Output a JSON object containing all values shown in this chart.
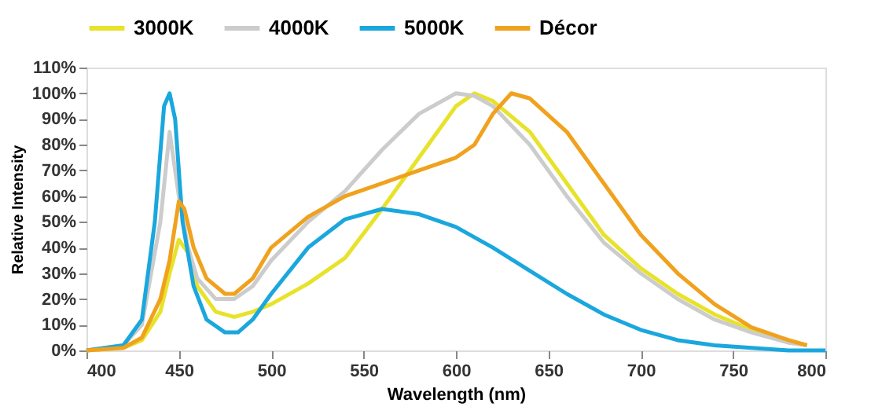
{
  "chart_data": {
    "type": "line",
    "xlabel": "Wavelength (nm)",
    "ylabel": "Relative Intensity",
    "xlim": [
      400,
      800
    ],
    "xticks": [
      400,
      450,
      500,
      550,
      600,
      650,
      700,
      750,
      800
    ],
    "ylim": [
      0,
      110
    ],
    "yticks": [
      {
        "value": 0,
        "label": "0%"
      },
      {
        "value": 10,
        "label": "10%"
      },
      {
        "value": 20,
        "label": "20%"
      },
      {
        "value": 30,
        "label": "30%"
      },
      {
        "value": 40,
        "label": "40%"
      },
      {
        "value": 50,
        "label": "50%"
      },
      {
        "value": 60,
        "label": "60%"
      },
      {
        "value": 70,
        "label": "70%"
      },
      {
        "value": 80,
        "label": "80%"
      },
      {
        "value": 90,
        "label": "90%"
      },
      {
        "value": 100,
        "label": "100%"
      },
      {
        "value": 110,
        "label": "110%"
      }
    ],
    "grid": false,
    "legend": "top",
    "marker": "none",
    "line_style": "solid",
    "series": [
      {
        "name": "3000K",
        "color": "#e8e22a",
        "x": [
          400,
          420,
          430,
          440,
          445,
          450,
          455,
          460,
          470,
          480,
          490,
          500,
          520,
          540,
          560,
          580,
          600,
          610,
          620,
          640,
          660,
          680,
          700,
          720,
          740,
          760,
          780,
          790
        ],
        "values": [
          0,
          1,
          4,
          15,
          30,
          43,
          38,
          25,
          15,
          13,
          15,
          18,
          26,
          36,
          55,
          75,
          95,
          100,
          97,
          85,
          65,
          45,
          32,
          22,
          14,
          8,
          4,
          2
        ]
      },
      {
        "name": "4000K",
        "color": "#cccccc",
        "x": [
          400,
          420,
          430,
          440,
          445,
          450,
          455,
          460,
          470,
          480,
          490,
          500,
          520,
          540,
          560,
          580,
          600,
          610,
          620,
          640,
          660,
          680,
          700,
          720,
          740,
          760,
          780,
          790
        ],
        "values": [
          0,
          2,
          10,
          50,
          85,
          60,
          40,
          28,
          20,
          20,
          25,
          35,
          50,
          62,
          78,
          92,
          100,
          99,
          95,
          80,
          60,
          42,
          30,
          20,
          12,
          7,
          3,
          2
        ]
      },
      {
        "name": "5000K",
        "color": "#1aa7dd",
        "x": [
          400,
          420,
          430,
          437,
          442,
          445,
          448,
          452,
          458,
          465,
          475,
          482,
          490,
          500,
          520,
          540,
          560,
          580,
          600,
          620,
          640,
          660,
          680,
          700,
          720,
          740,
          760,
          780,
          800
        ],
        "values": [
          0,
          2,
          12,
          50,
          95,
          100,
          90,
          50,
          25,
          12,
          7,
          7,
          12,
          22,
          40,
          51,
          55,
          53,
          48,
          40,
          31,
          22,
          14,
          8,
          4,
          2,
          1,
          0,
          0
        ]
      },
      {
        "name": "Décor",
        "color": "#f0a21e",
        "x": [
          400,
          420,
          430,
          440,
          445,
          450,
          453,
          458,
          465,
          475,
          480,
          490,
          500,
          520,
          540,
          560,
          580,
          600,
          610,
          620,
          630,
          640,
          660,
          680,
          700,
          720,
          740,
          760,
          780,
          790
        ],
        "values": [
          0,
          1,
          5,
          20,
          35,
          58,
          55,
          40,
          28,
          22,
          22,
          28,
          40,
          52,
          60,
          65,
          70,
          75,
          80,
          92,
          100,
          98,
          85,
          65,
          45,
          30,
          18,
          9,
          4,
          2
        ]
      }
    ]
  }
}
